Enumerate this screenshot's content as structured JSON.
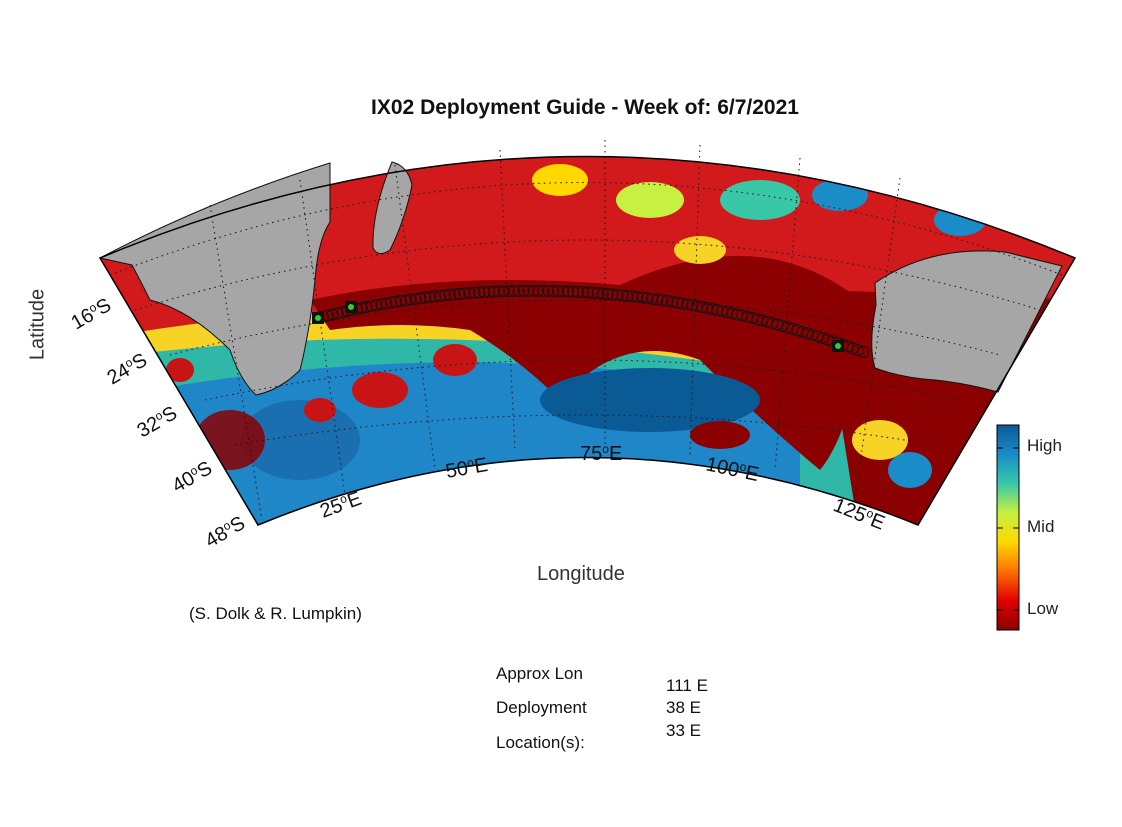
{
  "title": "IX02 Deployment Guide - Week of: 6/7/2021",
  "axes": {
    "xlabel": "Longitude",
    "ylabel": "Latitude",
    "lat_ticks": [
      "16",
      "24",
      "32",
      "40",
      "48"
    ],
    "lat_hemisphere": "S",
    "lon_ticks": [
      "25",
      "50",
      "75",
      "100",
      "125"
    ],
    "lon_hemisphere": "E",
    "degree_symbol": "o"
  },
  "colorbar": {
    "labels": [
      "High",
      "Mid",
      "Low"
    ],
    "colors": [
      "#8b0000",
      "#e00000",
      "#ff7000",
      "#ffd800",
      "#c8f040",
      "#38c8a8",
      "#1a8cc8",
      "#0a5a96"
    ]
  },
  "credit": "(S. Dolk & R. Lumpkin)",
  "deployment": {
    "labels": [
      "Approx Lon",
      "Deployment",
      "Location(s):"
    ],
    "values": [
      "111 E",
      "38 E",
      "33 E"
    ]
  },
  "colors": {
    "land": "#a6a6a6",
    "ocean_low": "#8b0000",
    "ocean_high": "#0a5a96",
    "marker_fill": "#33cc33"
  }
}
